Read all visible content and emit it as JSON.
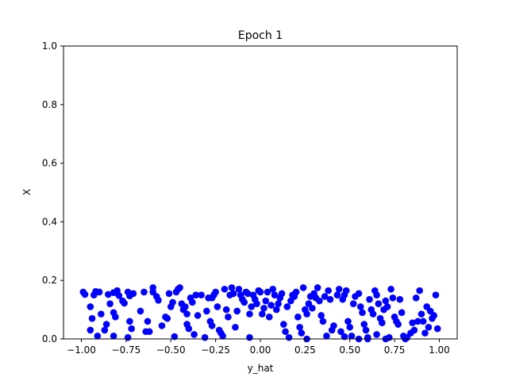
{
  "chart_data": {
    "type": "scatter",
    "title": "Epoch 1",
    "xlabel": "y_hat",
    "ylabel": "X",
    "xlim": [
      -1.1,
      1.1
    ],
    "ylim": [
      0.0,
      1.0
    ],
    "grid": false,
    "marker_color": "#0000ff",
    "xticks": [
      -1.0,
      -0.75,
      -0.5,
      -0.25,
      0.0,
      0.25,
      0.5,
      0.75,
      1.0
    ],
    "xtick_labels": [
      "−1.00",
      "−0.75",
      "−0.50",
      "−0.25",
      "0.00",
      "0.25",
      "0.50",
      "0.75",
      "1.00"
    ],
    "yticks": [
      0.0,
      0.2,
      0.4,
      0.6,
      0.8,
      1.0
    ],
    "ytick_labels": [
      "0.0",
      "0.2",
      "0.4",
      "0.6",
      "0.8",
      "1.0"
    ],
    "points": [
      [
        -0.99,
        0.16
      ],
      [
        -0.98,
        0.152
      ],
      [
        -0.95,
        0.11
      ],
      [
        -0.94,
        0.07
      ],
      [
        -0.95,
        0.03
      ],
      [
        -0.93,
        0.15
      ],
      [
        -0.92,
        0.162
      ],
      [
        -0.9,
        0.16
      ],
      [
        -0.91,
        0.01
      ],
      [
        -0.89,
        0.085
      ],
      [
        -0.87,
        0.03
      ],
      [
        -0.86,
        0.05
      ],
      [
        -0.85,
        0.152
      ],
      [
        -0.84,
        0.12
      ],
      [
        -0.82,
        0.158
      ],
      [
        -0.82,
        0.09
      ],
      [
        -0.81,
        0.075
      ],
      [
        -0.8,
        0.165
      ],
      [
        -0.79,
        0.148
      ],
      [
        -0.77,
        0.13
      ],
      [
        -0.76,
        0.122
      ],
      [
        -0.74,
        0.16
      ],
      [
        -0.73,
        0.147
      ],
      [
        -0.71,
        0.155
      ],
      [
        -0.73,
        0.06
      ],
      [
        -0.72,
        0.035
      ],
      [
        -0.74,
        0.005
      ],
      [
        -0.82,
        0.01
      ],
      [
        -0.67,
        0.095
      ],
      [
        -0.65,
        0.16
      ],
      [
        -0.63,
        0.06
      ],
      [
        -0.62,
        0.025
      ],
      [
        -0.64,
        0.025
      ],
      [
        -0.6,
        0.175
      ],
      [
        -0.6,
        0.16
      ],
      [
        -0.58,
        0.145
      ],
      [
        -0.57,
        0.132
      ],
      [
        -0.55,
        0.045
      ],
      [
        -0.53,
        0.075
      ],
      [
        -0.52,
        0.07
      ],
      [
        -0.51,
        0.155
      ],
      [
        -0.5,
        0.11
      ],
      [
        -0.49,
        0.125
      ],
      [
        -0.48,
        0.008
      ],
      [
        -0.47,
        0.16
      ],
      [
        -0.46,
        0.17
      ],
      [
        -0.45,
        0.175
      ],
      [
        -0.44,
        0.12
      ],
      [
        -0.43,
        0.1
      ],
      [
        -0.42,
        0.11
      ],
      [
        -0.41,
        0.085
      ],
      [
        -0.41,
        0.05
      ],
      [
        -0.4,
        0.035
      ],
      [
        -0.39,
        0.14
      ],
      [
        -0.38,
        0.125
      ],
      [
        -0.37,
        0.015
      ],
      [
        -0.36,
        0.15
      ],
      [
        -0.35,
        0.08
      ],
      [
        -0.33,
        0.15
      ],
      [
        -0.31,
        0.005
      ],
      [
        -0.3,
        0.095
      ],
      [
        -0.29,
        0.14
      ],
      [
        -0.28,
        0.06
      ],
      [
        -0.27,
        0.045
      ],
      [
        -0.27,
        0.14
      ],
      [
        -0.26,
        0.15
      ],
      [
        -0.25,
        0.16
      ],
      [
        -0.24,
        0.11
      ],
      [
        -0.23,
        0.03
      ],
      [
        -0.22,
        0.02
      ],
      [
        -0.21,
        0.01
      ],
      [
        -0.2,
        0.17
      ],
      [
        -0.19,
        0.1
      ],
      [
        -0.18,
        0.075
      ],
      [
        -0.17,
        0.15
      ],
      [
        -0.16,
        0.175
      ],
      [
        -0.15,
        0.155
      ],
      [
        -0.14,
        0.04
      ],
      [
        -0.13,
        0.095
      ],
      [
        -0.12,
        0.17
      ],
      [
        -0.11,
        0.15
      ],
      [
        -0.1,
        0.135
      ],
      [
        -0.09,
        0.125
      ],
      [
        -0.08,
        0.16
      ],
      [
        -0.07,
        0.155
      ],
      [
        -0.06,
        0.085
      ],
      [
        -0.05,
        0.11
      ],
      [
        -0.04,
        0.15
      ],
      [
        -0.03,
        0.135
      ],
      [
        -0.02,
        0.12
      ],
      [
        -0.01,
        0.165
      ],
      [
        0.0,
        0.16
      ],
      [
        0.01,
        0.085
      ],
      [
        0.02,
        0.105
      ],
      [
        0.03,
        0.13
      ],
      [
        0.04,
        0.16
      ],
      [
        0.05,
        0.075
      ],
      [
        0.06,
        0.115
      ],
      [
        0.07,
        0.17
      ],
      [
        0.08,
        0.15
      ],
      [
        0.09,
        0.1
      ],
      [
        0.1,
        0.12
      ],
      [
        0.11,
        0.14
      ],
      [
        0.12,
        0.155
      ],
      [
        0.13,
        0.05
      ],
      [
        0.14,
        0.025
      ],
      [
        0.15,
        0.11
      ],
      [
        0.16,
        0.005
      ],
      [
        0.17,
        0.13
      ],
      [
        0.18,
        0.15
      ],
      [
        0.19,
        0.145
      ],
      [
        0.2,
        0.16
      ],
      [
        0.21,
        0.075
      ],
      [
        0.22,
        0.04
      ],
      [
        0.23,
        0.02
      ],
      [
        0.24,
        0.175
      ],
      [
        0.25,
        0.1
      ],
      [
        0.26,
        0.085
      ],
      [
        0.27,
        0.12
      ],
      [
        0.28,
        0.145
      ],
      [
        0.29,
        0.105
      ],
      [
        0.3,
        0.155
      ],
      [
        0.31,
        0.14
      ],
      [
        0.32,
        0.175
      ],
      [
        0.33,
        0.13
      ],
      [
        0.34,
        0.08
      ],
      [
        0.35,
        0.06
      ],
      [
        0.36,
        0.145
      ],
      [
        0.37,
        0.01
      ],
      [
        0.38,
        0.165
      ],
      [
        0.39,
        0.135
      ],
      [
        0.4,
        0.03
      ],
      [
        0.41,
        0.045
      ],
      [
        0.43,
        0.15
      ],
      [
        0.44,
        0.17
      ],
      [
        0.45,
        0.025
      ],
      [
        0.46,
        0.135
      ],
      [
        0.47,
        0.15
      ],
      [
        0.48,
        0.165
      ],
      [
        0.49,
        0.06
      ],
      [
        0.5,
        0.04
      ],
      [
        0.51,
        0.01
      ],
      [
        0.52,
        0.12
      ],
      [
        0.53,
        0.145
      ],
      [
        0.55,
        0.155
      ],
      [
        0.56,
        0.11
      ],
      [
        0.57,
        0.09
      ],
      [
        0.58,
        0.05
      ],
      [
        0.59,
        0.03
      ],
      [
        0.6,
        0.005
      ],
      [
        0.61,
        0.135
      ],
      [
        0.62,
        0.1
      ],
      [
        0.63,
        0.085
      ],
      [
        0.64,
        0.165
      ],
      [
        0.65,
        0.15
      ],
      [
        0.66,
        0.12
      ],
      [
        0.67,
        0.07
      ],
      [
        0.68,
        0.055
      ],
      [
        0.69,
        0.1
      ],
      [
        0.7,
        0.13
      ],
      [
        0.71,
        0.11
      ],
      [
        0.72,
        0.005
      ],
      [
        0.73,
        0.17
      ],
      [
        0.74,
        0.14
      ],
      [
        0.75,
        0.075
      ],
      [
        0.76,
        0.06
      ],
      [
        0.77,
        0.05
      ],
      [
        0.78,
        0.135
      ],
      [
        0.79,
        0.09
      ],
      [
        0.8,
        0.01
      ],
      [
        0.81,
        0.0
      ],
      [
        0.82,
        0.005
      ],
      [
        0.84,
        0.02
      ],
      [
        0.85,
        0.055
      ],
      [
        0.86,
        0.03
      ],
      [
        0.87,
        0.14
      ],
      [
        0.88,
        0.06
      ],
      [
        0.89,
        0.165
      ],
      [
        0.9,
        0.085
      ],
      [
        0.91,
        0.06
      ],
      [
        0.92,
        0.02
      ],
      [
        0.93,
        0.11
      ],
      [
        0.94,
        0.04
      ],
      [
        0.95,
        0.095
      ],
      [
        0.96,
        0.07
      ],
      [
        0.97,
        0.08
      ],
      [
        0.98,
        0.15
      ],
      [
        0.99,
        0.035
      ],
      [
        0.55,
        0.0
      ],
      [
        0.6,
        0.0
      ],
      [
        0.65,
        0.015
      ],
      [
        0.7,
        0.0
      ],
      [
        0.47,
        0.008
      ],
      [
        0.26,
        0.0
      ],
      [
        -0.06,
        0.005
      ]
    ]
  }
}
